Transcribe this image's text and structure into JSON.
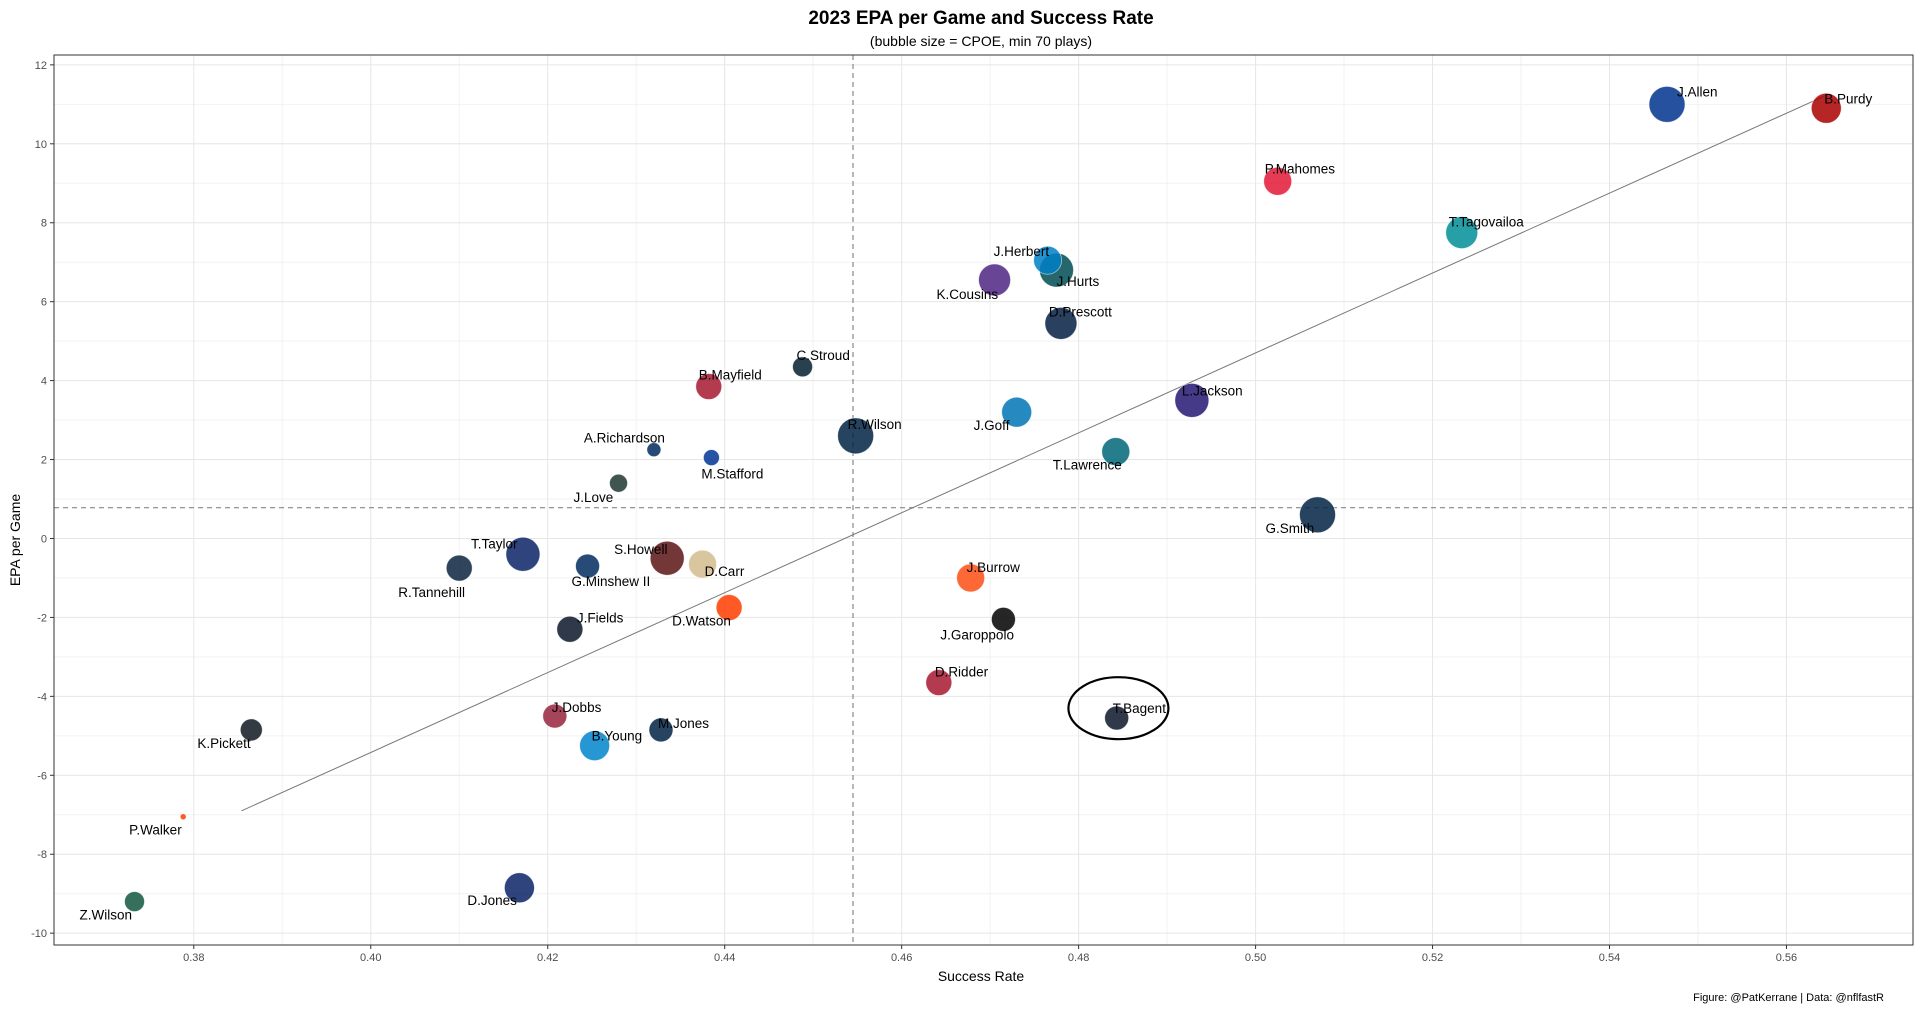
{
  "chart_data": {
    "type": "scatter",
    "title": "2023 EPA per Game and Success Rate",
    "subtitle": "(bubble size = CPOE, min 70 plays)",
    "xlabel": "Success Rate",
    "ylabel": "EPA per Game",
    "caption": "Figure: @PatKerrane | Data: @nflfastR",
    "xlim": [
      0.3642,
      0.5743
    ],
    "ylim": [
      -10.3,
      12.25
    ],
    "x_ticks": [
      0.38,
      0.4,
      0.42,
      0.44,
      0.46,
      0.48,
      0.5,
      0.52,
      0.54,
      0.56
    ],
    "x_tick_labels": [
      "0.38",
      "0.40",
      "0.42",
      "0.44",
      "0.46",
      "0.48",
      "0.50",
      "0.52",
      "0.54",
      "0.56"
    ],
    "y_ticks": [
      -10,
      -8,
      -6,
      -4,
      -2,
      0,
      2,
      4,
      6,
      8,
      10,
      12
    ],
    "y_tick_labels": [
      "-10",
      "-8",
      "-6",
      "-4",
      "-2",
      "0",
      "2",
      "4",
      "6",
      "8",
      "10",
      "12"
    ],
    "grid": true,
    "mean_lines": {
      "x": 0.4545,
      "y": 0.78
    },
    "trend_line": {
      "x": [
        0.3854,
        0.5642
      ],
      "y": [
        -6.9,
        11.2
      ]
    },
    "highlight": {
      "label": "T.Bagent",
      "x": 0.4845,
      "y": -4.3,
      "shape": "ellipse"
    },
    "points": [
      {
        "label": "J.Allen",
        "x": 0.5465,
        "y": 11.0,
        "size": 18,
        "color": "#00338D"
      },
      {
        "label": "B.Purdy",
        "x": 0.5645,
        "y": 10.9,
        "size": 15,
        "color": "#AA0000"
      },
      {
        "label": "P.Mahomes",
        "x": 0.5025,
        "y": 9.05,
        "size": 14,
        "color": "#E31837"
      },
      {
        "label": "T.Tagovailoa",
        "x": 0.5233,
        "y": 7.75,
        "size": 16,
        "color": "#008E97"
      },
      {
        "label": "J.Herbert",
        "x": 0.4765,
        "y": 7.05,
        "size": 14,
        "color": "#0080C6"
      },
      {
        "label": "J.Hurts",
        "x": 0.4775,
        "y": 6.8,
        "size": 17,
        "color": "#004C54"
      },
      {
        "label": "K.Cousins",
        "x": 0.4705,
        "y": 6.55,
        "size": 16,
        "color": "#4F2683"
      },
      {
        "label": "D.Prescott",
        "x": 0.478,
        "y": 5.45,
        "size": 16,
        "color": "#041E42"
      },
      {
        "label": "C.Stroud",
        "x": 0.4488,
        "y": 4.35,
        "size": 10,
        "color": "#03202F"
      },
      {
        "label": "B.Mayfield",
        "x": 0.4382,
        "y": 3.85,
        "size": 13,
        "color": "#A71930"
      },
      {
        "label": "L.Jackson",
        "x": 0.4928,
        "y": 3.5,
        "size": 17,
        "color": "#241773"
      },
      {
        "label": "J.Goff",
        "x": 0.473,
        "y": 3.2,
        "size": 15,
        "color": "#0076B6"
      },
      {
        "label": "R.Wilson",
        "x": 0.4548,
        "y": 2.6,
        "size": 18,
        "color": "#002244"
      },
      {
        "label": "A.Richardson",
        "x": 0.432,
        "y": 2.25,
        "size": 7,
        "color": "#002C5F"
      },
      {
        "label": "M.Stafford",
        "x": 0.4385,
        "y": 2.05,
        "size": 8,
        "color": "#003594"
      },
      {
        "label": "T.Lawrence",
        "x": 0.4842,
        "y": 2.2,
        "size": 14,
        "color": "#006778"
      },
      {
        "label": "J.Love",
        "x": 0.428,
        "y": 1.4,
        "size": 9,
        "color": "#203731"
      },
      {
        "label": "G.Smith",
        "x": 0.507,
        "y": 0.6,
        "size": 18,
        "color": "#002244"
      },
      {
        "label": "T.Taylor",
        "x": 0.4172,
        "y": -0.4,
        "size": 17,
        "color": "#0B2265"
      },
      {
        "label": "S.Howell",
        "x": 0.4335,
        "y": -0.5,
        "size": 17,
        "color": "#5A1414"
      },
      {
        "label": "D.Carr",
        "x": 0.4375,
        "y": -0.65,
        "size": 14,
        "color": "#D3BC8D"
      },
      {
        "label": "R.Tannehill",
        "x": 0.41,
        "y": -0.75,
        "size": 13,
        "color": "#0C2340"
      },
      {
        "label": "G.Minshew II",
        "x": 0.4245,
        "y": -0.7,
        "size": 12,
        "color": "#002C5F"
      },
      {
        "label": "J.Burrow",
        "x": 0.4678,
        "y": -1.0,
        "size": 14,
        "color": "#FB4F14"
      },
      {
        "label": "D.Watson",
        "x": 0.4405,
        "y": -1.75,
        "size": 13,
        "color": "#FF3C00"
      },
      {
        "label": "J.Garoppolo",
        "x": 0.4715,
        "y": -2.05,
        "size": 12,
        "color": "#000000"
      },
      {
        "label": "J.Fields",
        "x": 0.4225,
        "y": -2.3,
        "size": 13,
        "color": "#0B162A"
      },
      {
        "label": "D.Ridder",
        "x": 0.4642,
        "y": -3.65,
        "size": 13,
        "color": "#A71930"
      },
      {
        "label": "T.Bagent",
        "x": 0.4843,
        "y": -4.55,
        "size": 12,
        "color": "#0B162A"
      },
      {
        "label": "J.Dobbs",
        "x": 0.4208,
        "y": -4.5,
        "size": 12,
        "color": "#97233F"
      },
      {
        "label": "M.Jones",
        "x": 0.4328,
        "y": -4.85,
        "size": 12,
        "color": "#002244"
      },
      {
        "label": "K.Pickett",
        "x": 0.3865,
        "y": -4.85,
        "size": 11,
        "color": "#101820"
      },
      {
        "label": "B.Young",
        "x": 0.4253,
        "y": -5.25,
        "size": 15,
        "color": "#0085CA"
      },
      {
        "label": "P.Walker",
        "x": 0.3788,
        "y": -7.05,
        "size": 3,
        "color": "#FF3C00"
      },
      {
        "label": "D.Jones",
        "x": 0.4168,
        "y": -8.85,
        "size": 15,
        "color": "#0B2265"
      },
      {
        "label": "Z.Wilson",
        "x": 0.3733,
        "y": -9.2,
        "size": 10,
        "color": "#125740"
      }
    ]
  }
}
